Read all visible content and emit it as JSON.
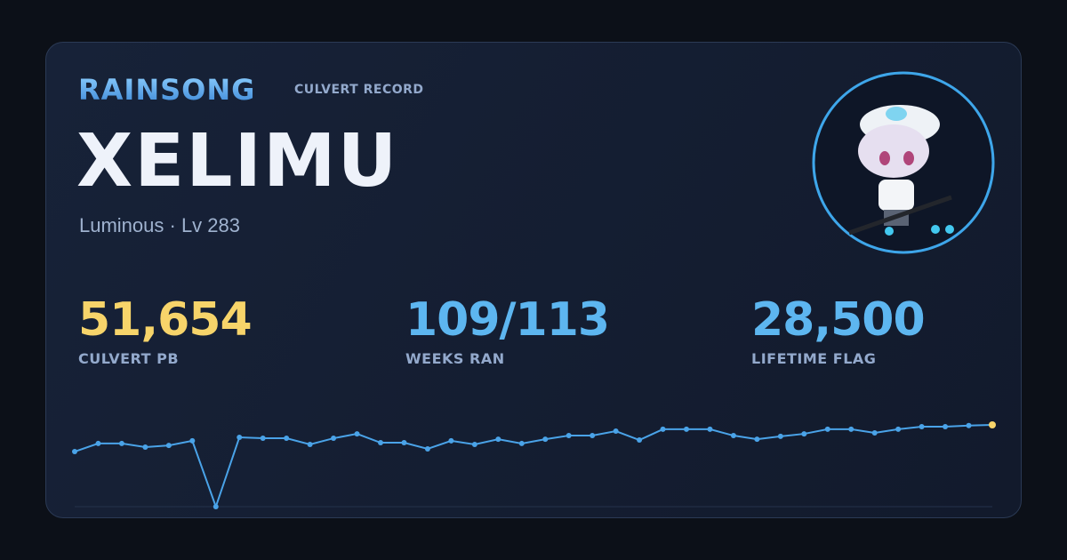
{
  "header": {
    "guild": "RAINSONG",
    "record_type": "CULVERT RECORD",
    "name": "XELIMU",
    "subtitle": "Luminous · Lv 283"
  },
  "stats": [
    {
      "value": "51,654",
      "label": "CULVERT PB",
      "color": "#f7d46a"
    },
    {
      "value": "109/113",
      "label": "WEEKS RAN",
      "color": "#5db6f0"
    },
    {
      "value": "28,500",
      "label": "LIFETIME FLAG",
      "color": "#5db6f0"
    }
  ],
  "sparkline": {
    "type": "line",
    "color": "#4aa3e8",
    "highlight_color": "#f7d46a",
    "values": [
      34800,
      39900,
      39900,
      37600,
      38700,
      41600,
      0,
      43800,
      43200,
      43200,
      39300,
      43200,
      46000,
      40400,
      40400,
      36500,
      41600,
      39300,
      42600,
      39900,
      42600,
      44900,
      44900,
      47700,
      42100,
      48900,
      48900,
      48900,
      44900,
      42600,
      44400,
      46000,
      48900,
      48900,
      46600,
      48900,
      50500,
      50500,
      51200,
      51654
    ]
  }
}
